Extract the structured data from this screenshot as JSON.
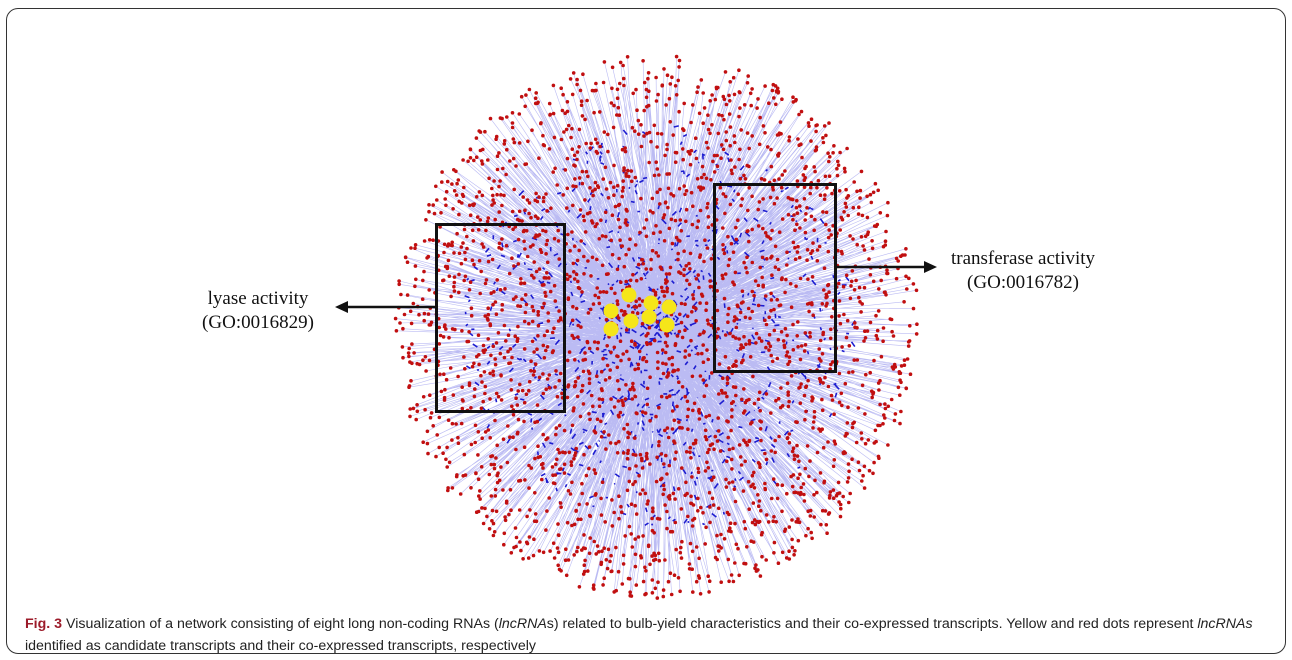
{
  "figure": {
    "label": "Fig. 3",
    "caption_parts": {
      "p1": " Visualization of a network consisting of eight long non-coding RNAs (",
      "i1": "lncRNA",
      "p2": "s) related to bulb-yield characteristics and their co-expressed transcripts. Yellow and red dots represent ",
      "i2": "lncRNAs",
      "p3": " identified as candidate transcripts and their co-expressed transcripts, respectively"
    }
  },
  "annotations": {
    "left": {
      "line1": "lyase activity",
      "line2": "(GO:0016829)"
    },
    "right": {
      "line1": "transferase activity",
      "line2": "(GO:0016782)"
    }
  },
  "colors": {
    "candidate_node": "#f5e61a",
    "coexpressed_node": "#c10f10",
    "edge": "#3b3bdc",
    "box": "#111111"
  },
  "network": {
    "candidate_lncRNA_count": 8
  }
}
